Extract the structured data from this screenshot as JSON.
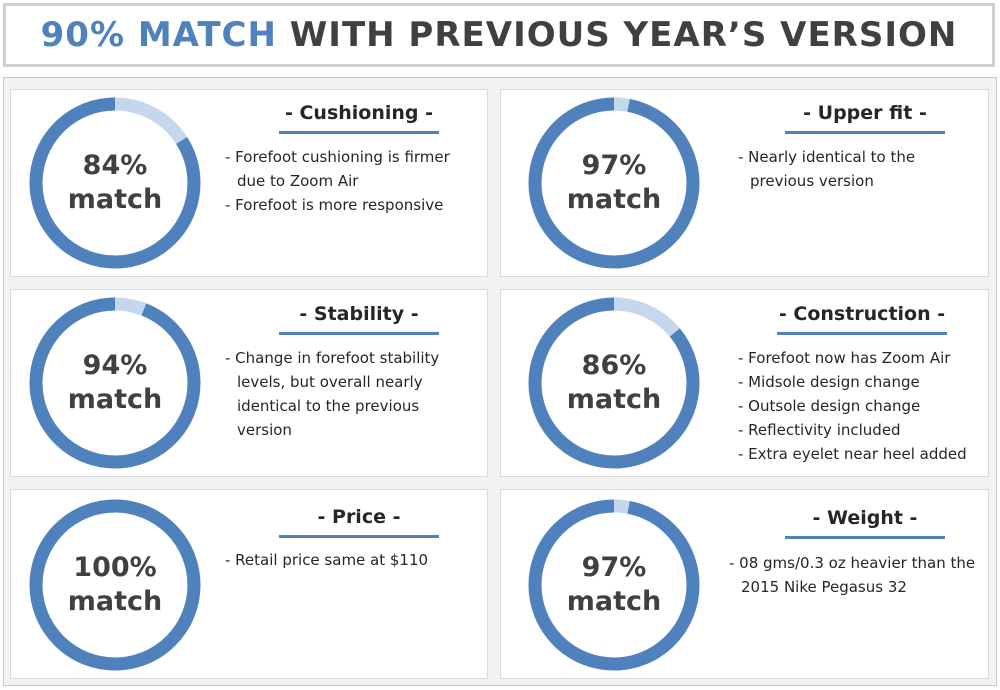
{
  "header": {
    "title_accent": "90% MATCH",
    "title_rest": "WITH PREVIOUS YEAR’S VERSION"
  },
  "colors": {
    "ring_filled": "#4f81bd",
    "ring_remainder": "#c5d7ec",
    "title_accent": "#4f81bd",
    "title_text": "#404040"
  },
  "chart_data": [
    {
      "type": "pie",
      "title": "- Cushioning -",
      "value": 84,
      "max": 100,
      "label_value": "84%",
      "label_word": "match",
      "notes": [
        "- Forefoot cushioning is firmer due to Zoom Air",
        "- Forefoot is more responsive"
      ]
    },
    {
      "type": "pie",
      "title": "- Upper fit -",
      "value": 97,
      "max": 100,
      "label_value": "97%",
      "label_word": "match",
      "notes": [
        "- Nearly identical to the previous version"
      ]
    },
    {
      "type": "pie",
      "title": "- Stability -",
      "value": 94,
      "max": 100,
      "label_value": "94%",
      "label_word": "match",
      "notes": [
        "- Change in forefoot stability levels, but overall nearly identical to the previous version"
      ]
    },
    {
      "type": "pie",
      "title": "- Construction -",
      "value": 86,
      "max": 100,
      "label_value": "86%",
      "label_word": "match",
      "notes": [
        "- Forefoot now has Zoom Air",
        "- Midsole design change",
        "- Outsole design change",
        "- Reflectivity included",
        "- Extra eyelet near heel added"
      ]
    },
    {
      "type": "pie",
      "title": "- Price -",
      "value": 100,
      "max": 100,
      "label_value": "100%",
      "label_word": "match",
      "notes": [
        "-  Retail price same at $110"
      ]
    },
    {
      "type": "pie",
      "title": "- Weight -",
      "value": 97,
      "max": 100,
      "label_value": "97%",
      "label_word": "match",
      "notes": [
        "- 08 gms/0.3 oz heavier than the 2015 Nike Pegasus 32"
      ]
    }
  ]
}
